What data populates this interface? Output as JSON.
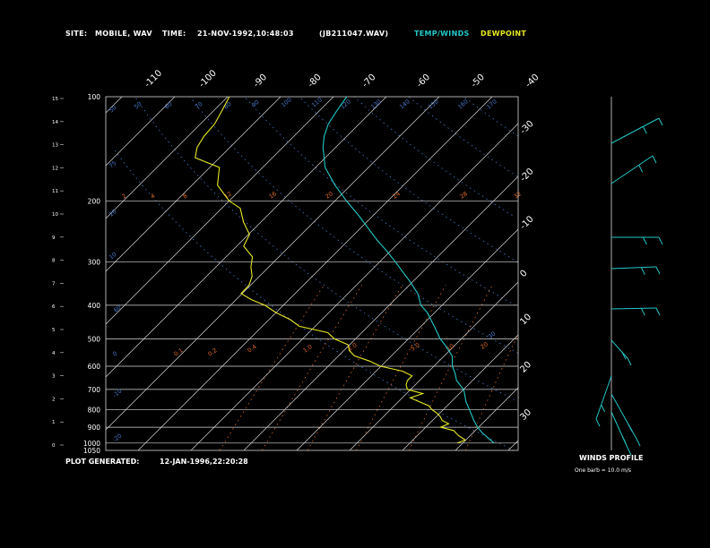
{
  "header": {
    "site_label": "SITE:",
    "site_value": "MOBILE, WAV",
    "time_label": "TIME:",
    "time_value": "21-NOV-1992,10:48:03",
    "file_value": "(JB211047.WAV)",
    "temp_winds_label": "TEMP/WINDS",
    "dewpoint_label": "DEWPOINT"
  },
  "footer": {
    "plot_generated_label": "PLOT GENERATED:",
    "plot_generated_value": "12-JAN-1996,22:20:28",
    "winds_profile_label": "WINDS PROFILE",
    "winds_profile_note": "One barb = 10.0 m/s"
  },
  "colors": {
    "temperature": "#22c8c8",
    "dewpoint": "#e8e820",
    "grid": "#d8d8d8",
    "mixing_ratio": "#e06a28",
    "dry_adiabat": "#4a78c8",
    "text": "#ffffff"
  },
  "chart_data": {
    "type": "line",
    "pressure_levels_hpa": [
      "100",
      "200",
      "300",
      "400",
      "500",
      "600",
      "700",
      "800",
      "900",
      "1000",
      "1050"
    ],
    "height_ticks_km": [
      "0",
      "1",
      "2",
      "3",
      "4",
      "5",
      "6",
      "7",
      "8",
      "9",
      "10",
      "11",
      "12",
      "13",
      "14",
      "15"
    ],
    "skew_temp_labels_top": [
      "-110",
      "-100",
      "-90",
      "-80",
      "-70",
      "-60",
      "-50",
      "-40"
    ],
    "skew_temp_labels_right": [
      "-30",
      "-20",
      "-10",
      "0",
      "10",
      "20",
      "30"
    ],
    "dry_adiabat_labels": [
      "50",
      "50",
      "60",
      "70",
      "80",
      "90",
      "100",
      "110",
      "120",
      "130",
      "140",
      "150",
      "160",
      "170",
      "75",
      "20",
      "10",
      "60",
      "0",
      "-10",
      "-20",
      "-30"
    ],
    "mixing_ratio_labels": [
      "2",
      "4",
      "8",
      "12",
      "16",
      "20",
      "24",
      "28",
      "32",
      "0.1",
      "0.2",
      "0.4",
      "1.0",
      "2.0",
      "5.0",
      "10",
      "20"
    ],
    "series": [
      {
        "name": "TEMP/WINDS",
        "points": [
          [
            1000,
            25.9
          ],
          [
            960,
            23.4
          ],
          [
            930,
            21.5
          ],
          [
            900,
            19.8
          ],
          [
            860,
            17.8
          ],
          [
            820,
            15.9
          ],
          [
            800,
            14.9
          ],
          [
            760,
            12.8
          ],
          [
            720,
            11.0
          ],
          [
            700,
            10.0
          ],
          [
            660,
            7.0
          ],
          [
            630,
            5.4
          ],
          [
            600,
            3.5
          ],
          [
            560,
            1.5
          ],
          [
            520,
            -2.0
          ],
          [
            500,
            -4.0
          ],
          [
            460,
            -7.5
          ],
          [
            420,
            -11.4
          ],
          [
            400,
            -14.0
          ],
          [
            370,
            -16.8
          ],
          [
            340,
            -20.8
          ],
          [
            300,
            -27.0
          ],
          [
            280,
            -30.5
          ],
          [
            260,
            -34.5
          ],
          [
            240,
            -38.5
          ],
          [
            220,
            -42.8
          ],
          [
            200,
            -47.8
          ],
          [
            180,
            -53.0
          ],
          [
            160,
            -58.2
          ],
          [
            140,
            -62.4
          ],
          [
            130,
            -64.3
          ],
          [
            120,
            -65.8
          ],
          [
            110,
            -66.7
          ],
          [
            100,
            -67.5
          ]
        ]
      },
      {
        "name": "DEWPOINT",
        "points": [
          [
            1000,
            19.0
          ],
          [
            980,
            19.9
          ],
          [
            950,
            17.7
          ],
          [
            920,
            15.9
          ],
          [
            900,
            12.8
          ],
          [
            880,
            13.7
          ],
          [
            860,
            11.8
          ],
          [
            840,
            10.8
          ],
          [
            820,
            9.5
          ],
          [
            800,
            7.8
          ],
          [
            780,
            6.5
          ],
          [
            760,
            4.0
          ],
          [
            740,
            1.5
          ],
          [
            720,
            3.1
          ],
          [
            700,
            -0.6
          ],
          [
            680,
            -1.7
          ],
          [
            660,
            -2.3
          ],
          [
            640,
            -2.3
          ],
          [
            620,
            -5.0
          ],
          [
            600,
            -10.1
          ],
          [
            580,
            -13.1
          ],
          [
            560,
            -17.0
          ],
          [
            540,
            -19.0
          ],
          [
            520,
            -20.3
          ],
          [
            500,
            -24.0
          ],
          [
            480,
            -26.4
          ],
          [
            460,
            -33.0
          ],
          [
            440,
            -36.0
          ],
          [
            420,
            -40.0
          ],
          [
            400,
            -43.5
          ],
          [
            385,
            -47.2
          ],
          [
            370,
            -50.2
          ],
          [
            350,
            -50.3
          ],
          [
            330,
            -51.4
          ],
          [
            310,
            -53.4
          ],
          [
            290,
            -55.0
          ],
          [
            270,
            -58.7
          ],
          [
            250,
            -59.8
          ],
          [
            230,
            -63.3
          ],
          [
            210,
            -66.5
          ],
          [
            200,
            -70.0
          ],
          [
            180,
            -75.2
          ],
          [
            160,
            -78.2
          ],
          [
            150,
            -84.6
          ],
          [
            140,
            -86.2
          ],
          [
            130,
            -87.0
          ],
          [
            120,
            -87.3
          ],
          [
            110,
            -88.4
          ],
          [
            100,
            -89.7
          ]
        ]
      }
    ],
    "xlabel": "",
    "ylabel": "",
    "grid": true,
    "legend": "top-right"
  }
}
